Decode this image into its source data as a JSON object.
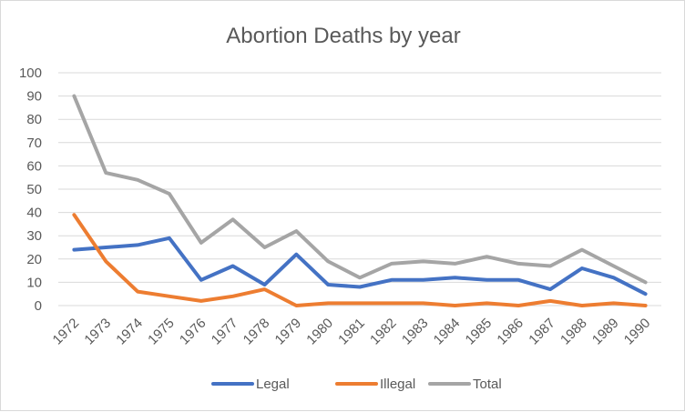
{
  "chart_data": {
    "type": "line",
    "title": "Abortion Deaths by year",
    "xlabel": "",
    "ylabel": "",
    "x": [
      "1972",
      "1973",
      "1974",
      "1975",
      "1976",
      "1977",
      "1978",
      "1979",
      "1980",
      "1981",
      "1982",
      "1983",
      "1984",
      "1985",
      "1986",
      "1987",
      "1988",
      "1989",
      "1990"
    ],
    "ylim": [
      0,
      100
    ],
    "yticks": [
      0,
      10,
      20,
      30,
      40,
      50,
      60,
      70,
      80,
      90,
      100
    ],
    "grid": true,
    "legend_position": "bottom",
    "series": [
      {
        "name": "Legal",
        "color": "#4472c4",
        "values": [
          24,
          25,
          26,
          29,
          11,
          17,
          9,
          22,
          9,
          8,
          11,
          11,
          12,
          11,
          11,
          7,
          16,
          12,
          5
        ]
      },
      {
        "name": "Illegal",
        "color": "#ed7d31",
        "values": [
          39,
          19,
          6,
          4,
          2,
          4,
          7,
          0,
          1,
          1,
          1,
          1,
          0,
          1,
          0,
          2,
          0,
          1,
          0
        ]
      },
      {
        "name": "Total",
        "color": "#a5a5a5",
        "values": [
          90,
          57,
          54,
          48,
          27,
          37,
          25,
          32,
          19,
          12,
          18,
          19,
          18,
          21,
          18,
          17,
          24,
          17,
          10
        ]
      }
    ]
  }
}
